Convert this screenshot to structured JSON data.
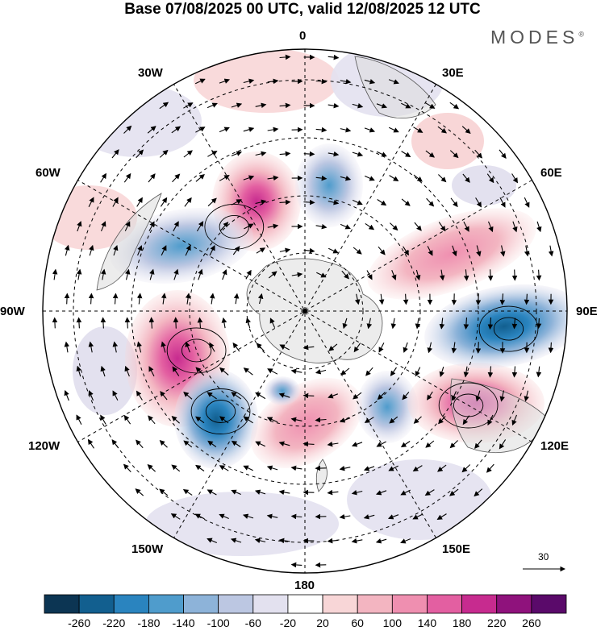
{
  "title": "Base 07/08/2025 00 UTC, valid 12/08/2025 12 UTC",
  "brand": "MODES",
  "brand_mark": "®",
  "longitude_labels": {
    "lon_0": "0",
    "lon_30e": "30E",
    "lon_60e": "60E",
    "lon_90e": "90E",
    "lon_120e": "120E",
    "lon_150e": "150E",
    "lon_180": "180",
    "lon_150w": "150W",
    "lon_120w": "120W",
    "lon_90w": "90W",
    "lon_60w": "60W",
    "lon_30w": "30W"
  },
  "reference_vector_label": "30",
  "colorbar": {
    "ticks": [
      "-260",
      "-220",
      "-180",
      "-140",
      "-100",
      "-60",
      "-20",
      "20",
      "60",
      "100",
      "140",
      "180",
      "220",
      "260"
    ],
    "colors": [
      "#0c3553",
      "#125f8f",
      "#2a84bf",
      "#4f9ccc",
      "#8db3d9",
      "#bcc7e2",
      "#e3e1ef",
      "#ffffff",
      "#f8d6d7",
      "#f3b5c1",
      "#ef8fb0",
      "#e35fa1",
      "#c72b8f",
      "#8f127c",
      "#5a0a6a"
    ]
  },
  "anomalies": [
    {
      "sign": "+",
      "lon": -40,
      "r": 0.42,
      "peak": "+200"
    },
    {
      "sign": "-",
      "lon": -60,
      "r": 0.56,
      "peak": "-120"
    },
    {
      "sign": "+",
      "lon": -110,
      "r": 0.44,
      "peak": "+180"
    },
    {
      "sign": "-",
      "lon": -140,
      "r": 0.5,
      "peak": "-220"
    },
    {
      "sign": "+",
      "lon": 165,
      "r": 0.36,
      "peak": "+120"
    },
    {
      "sign": "-",
      "lon": 135,
      "r": 0.36,
      "peak": "-100"
    },
    {
      "sign": "+",
      "lon": 120,
      "r": 0.72,
      "peak": "+170"
    },
    {
      "sign": "-",
      "lon": 95,
      "r": 0.78,
      "peak": "-200"
    },
    {
      "sign": "+",
      "lon": 70,
      "r": 0.58,
      "peak": "+120"
    },
    {
      "sign": "-",
      "lon": -5,
      "r": 0.42,
      "peak": "-80"
    }
  ]
}
